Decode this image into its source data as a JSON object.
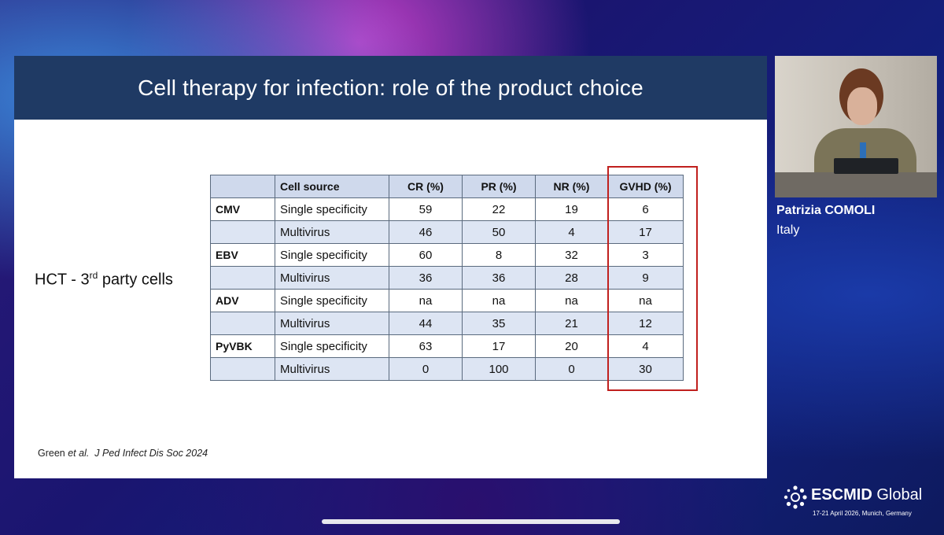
{
  "slide": {
    "title": "Cell therapy for infection: role of the product choice",
    "side_label_prefix": "HCT  - 3",
    "side_label_sup": "rd",
    "side_label_suffix": " party cells",
    "citation_authors": "Green ",
    "citation_etal": "et al.",
    "citation_source": "J Ped Infect Dis Soc 2024",
    "highlight_color": "#c0201e",
    "header_color": "#1f3a64"
  },
  "table": {
    "headers": [
      "",
      "Cell source",
      "CR (%)",
      "PR (%)",
      "NR (%)",
      "GVHD (%)"
    ],
    "rows": [
      {
        "virus": "CMV",
        "source": "Single specificity",
        "cr": "59",
        "pr": "22",
        "nr": "19",
        "gvhd": "6"
      },
      {
        "virus": "",
        "source": "Multivirus",
        "cr": "46",
        "pr": "50",
        "nr": "4",
        "gvhd": "17"
      },
      {
        "virus": "EBV",
        "source": "Single specificity",
        "cr": "60",
        "pr": "8",
        "nr": "32",
        "gvhd": "3"
      },
      {
        "virus": "",
        "source": "Multivirus",
        "cr": "36",
        "pr": "36",
        "nr": "28",
        "gvhd": "9"
      },
      {
        "virus": "ADV",
        "source": "Single specificity",
        "cr": "na",
        "pr": "na",
        "nr": "na",
        "gvhd": "na"
      },
      {
        "virus": "",
        "source": "Multivirus",
        "cr": "44",
        "pr": "35",
        "nr": "21",
        "gvhd": "12"
      },
      {
        "virus": "PyVBK",
        "source": "Single specificity",
        "cr": "63",
        "pr": "17",
        "nr": "20",
        "gvhd": "4"
      },
      {
        "virus": "",
        "source": "Multivirus",
        "cr": "0",
        "pr": "100",
        "nr": "0",
        "gvhd": "30"
      }
    ]
  },
  "speaker": {
    "name": "Patrizia COMOLI",
    "country": "Italy"
  },
  "event": {
    "logo_bold": "ESCMID",
    "logo_light": " Global",
    "logo_subtitle": "17-21 April 2026, Munich, Germany",
    "logo_icon": "dotted-ring-icon"
  }
}
